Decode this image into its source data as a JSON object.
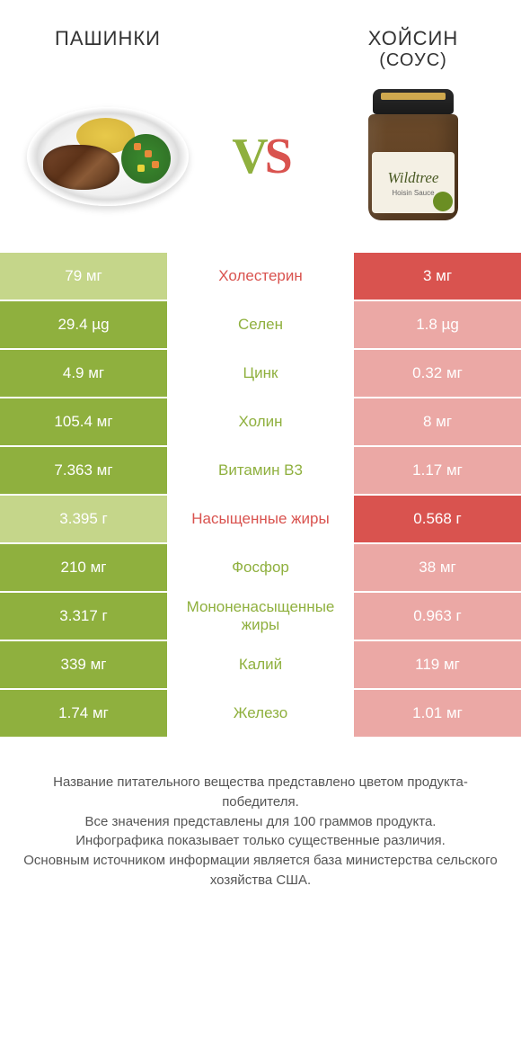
{
  "header": {
    "left_title": "ПАШИНКИ",
    "right_title": "ХОЙСИН",
    "right_subtitle": "(СОУС)",
    "vs_v": "V",
    "vs_s": "S"
  },
  "jar": {
    "brand": "Wildtree",
    "product": "Hoisin Sauce"
  },
  "colors": {
    "green_winner": "#8fb03e",
    "green_loser": "#c5d68a",
    "red_winner": "#d9534f",
    "red_loser": "#eba8a5",
    "label_green": "#8fb03e",
    "label_red": "#d9534f"
  },
  "rows": [
    {
      "label": "Холестерин",
      "left": "79 мг",
      "right": "3 мг",
      "winner": "right"
    },
    {
      "label": "Селен",
      "left": "29.4 µg",
      "right": "1.8 µg",
      "winner": "left"
    },
    {
      "label": "Цинк",
      "left": "4.9 мг",
      "right": "0.32 мг",
      "winner": "left"
    },
    {
      "label": "Холин",
      "left": "105.4 мг",
      "right": "8 мг",
      "winner": "left"
    },
    {
      "label": "Витамин B3",
      "left": "7.363 мг",
      "right": "1.17 мг",
      "winner": "left"
    },
    {
      "label": "Насыщенные жиры",
      "left": "3.395 г",
      "right": "0.568 г",
      "winner": "right"
    },
    {
      "label": "Фосфор",
      "left": "210 мг",
      "right": "38 мг",
      "winner": "left"
    },
    {
      "label": "Мононенасыщенные жиры",
      "left": "3.317 г",
      "right": "0.963 г",
      "winner": "left"
    },
    {
      "label": "Калий",
      "left": "339 мг",
      "right": "119 мг",
      "winner": "left"
    },
    {
      "label": "Железо",
      "left": "1.74 мг",
      "right": "1.01 мг",
      "winner": "left"
    }
  ],
  "footer": {
    "line1": "Название питательного вещества представлено цветом продукта-победителя.",
    "line2": "Все значения представлены для 100 граммов продукта.",
    "line3": "Инфографика показывает только существенные различия.",
    "line4": "Основным источником информации является база министерства сельского хозяйства США."
  }
}
